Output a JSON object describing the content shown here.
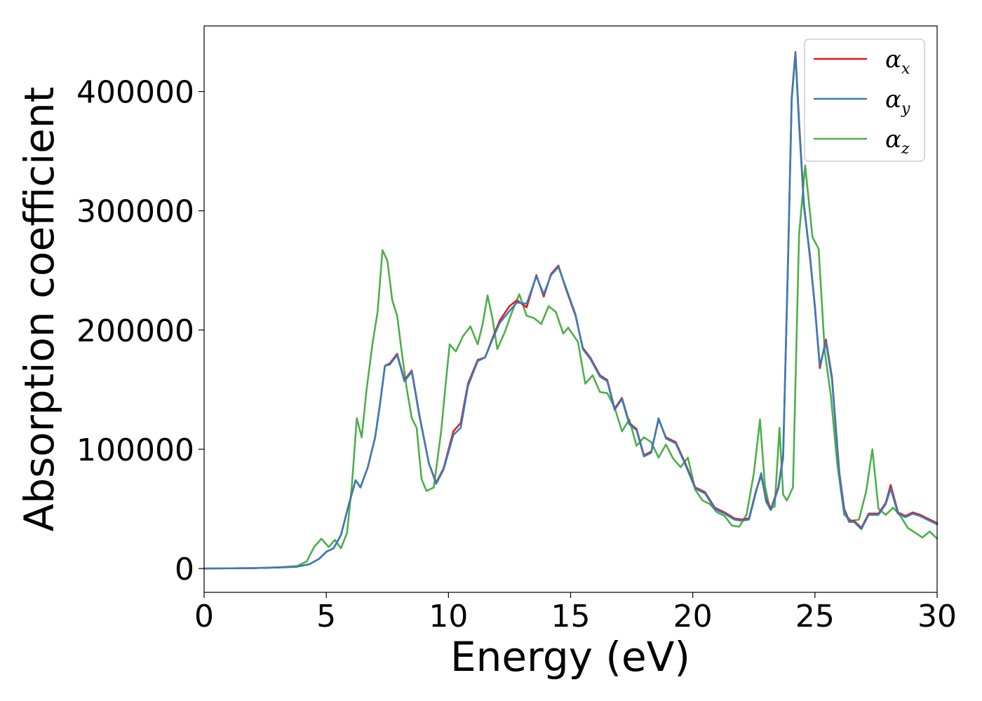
{
  "chart_data": {
    "type": "line",
    "xlabel": "Energy (eV)",
    "ylabel": "Absorption coefficient",
    "xlim": [
      0,
      30
    ],
    "ylim": [
      -20000,
      455000
    ],
    "xticks": [
      0,
      5,
      10,
      15,
      20,
      25,
      30
    ],
    "yticks": [
      0,
      100000,
      200000,
      300000,
      400000
    ],
    "grid": false,
    "legend_position": "top-right",
    "series": [
      {
        "name": "αx",
        "legend_base": "α",
        "legend_sub": "x",
        "color": "#e41a1c",
        "x": [
          0,
          2,
          3,
          3.8,
          4.3,
          4.7,
          5.0,
          5.3,
          5.6,
          5.9,
          6.2,
          6.4,
          6.7,
          7.0,
          7.2,
          7.4,
          7.6,
          7.9,
          8.2,
          8.5,
          8.8,
          9.2,
          9.5,
          9.8,
          10.2,
          10.5,
          10.8,
          11.2,
          11.5,
          11.8,
          12.1,
          12.5,
          12.8,
          13.2,
          13.6,
          13.9,
          14.2,
          14.5,
          14.8,
          15.2,
          15.5,
          15.8,
          16.2,
          16.5,
          16.8,
          17.1,
          17.4,
          17.7,
          18.0,
          18.3,
          18.6,
          18.9,
          19.3,
          19.7,
          20.1,
          20.5,
          20.9,
          21.3,
          21.7,
          22.0,
          22.3,
          22.6,
          22.8,
          23.0,
          23.2,
          23.5,
          23.7,
          23.9,
          24.05,
          24.2,
          24.35,
          24.55,
          24.8,
          25.0,
          25.2,
          25.45,
          25.7,
          26.0,
          26.2,
          26.4,
          26.6,
          26.9,
          27.2,
          27.6,
          27.9,
          28.1,
          28.4,
          28.7,
          29.0,
          29.3,
          29.6,
          30
        ],
        "y": [
          0,
          300,
          800,
          1500,
          3500,
          8000,
          14000,
          17000,
          28000,
          52000,
          74000,
          68000,
          85000,
          110000,
          138000,
          170000,
          172000,
          180000,
          158000,
          166000,
          130000,
          88000,
          72000,
          84000,
          115000,
          122000,
          155000,
          175000,
          177000,
          193000,
          208000,
          220000,
          225000,
          219000,
          246000,
          228000,
          247000,
          254000,
          235000,
          212000,
          185000,
          177000,
          162000,
          158000,
          134000,
          143000,
          122000,
          117000,
          95000,
          98000,
          125000,
          110000,
          106000,
          88000,
          68000,
          64000,
          51000,
          47000,
          42000,
          41000,
          42000,
          66000,
          78000,
          58000,
          50000,
          68000,
          95000,
          260000,
          395000,
          433000,
          375000,
          305000,
          260000,
          220000,
          168000,
          192000,
          160000,
          80000,
          50000,
          40000,
          40000,
          34000,
          46000,
          46000,
          55000,
          70000,
          47000,
          44000,
          47000,
          45000,
          42000,
          38000
        ]
      },
      {
        "name": "αy",
        "legend_base": "α",
        "legend_sub": "y",
        "color": "#377eb8",
        "x": [
          0,
          2,
          3,
          3.8,
          4.3,
          4.7,
          5.0,
          5.3,
          5.6,
          5.9,
          6.2,
          6.4,
          6.7,
          7.0,
          7.2,
          7.4,
          7.6,
          7.9,
          8.2,
          8.5,
          8.8,
          9.2,
          9.5,
          9.8,
          10.2,
          10.5,
          10.8,
          11.2,
          11.5,
          11.8,
          12.1,
          12.5,
          12.8,
          13.2,
          13.6,
          13.9,
          14.2,
          14.5,
          14.8,
          15.2,
          15.5,
          15.8,
          16.2,
          16.5,
          16.8,
          17.1,
          17.4,
          17.7,
          18.0,
          18.3,
          18.6,
          18.9,
          19.3,
          19.7,
          20.1,
          20.5,
          20.9,
          21.3,
          21.7,
          22.0,
          22.3,
          22.6,
          22.8,
          23.0,
          23.2,
          23.5,
          23.7,
          23.9,
          24.05,
          24.2,
          24.35,
          24.55,
          24.8,
          25.0,
          25.2,
          25.45,
          25.7,
          26.0,
          26.2,
          26.4,
          26.6,
          26.9,
          27.2,
          27.6,
          27.9,
          28.1,
          28.4,
          28.7,
          29.0,
          29.3,
          29.6,
          30
        ],
        "y": [
          0,
          300,
          800,
          1500,
          3500,
          8000,
          14000,
          17000,
          28000,
          52000,
          74000,
          68000,
          85000,
          110000,
          138000,
          170000,
          171000,
          179000,
          157000,
          165000,
          129000,
          88000,
          71000,
          83000,
          112000,
          118000,
          153000,
          174000,
          177000,
          192000,
          206000,
          216000,
          223000,
          222000,
          245000,
          230000,
          246000,
          253000,
          236000,
          213000,
          184000,
          176000,
          161000,
          157000,
          133000,
          142000,
          121000,
          116000,
          94000,
          97000,
          126000,
          109000,
          105000,
          87000,
          67000,
          63000,
          50000,
          46000,
          41000,
          40000,
          41000,
          65000,
          80000,
          56000,
          49000,
          67000,
          93000,
          258000,
          393000,
          432000,
          372000,
          303000,
          262000,
          218000,
          170000,
          190000,
          158000,
          78000,
          48000,
          39000,
          39000,
          33000,
          45000,
          45000,
          54000,
          67000,
          46000,
          43000,
          46000,
          44000,
          41000,
          37000
        ]
      },
      {
        "name": "αz",
        "legend_base": "α",
        "legend_sub": "z",
        "color": "#4daf4a",
        "x": [
          0,
          2,
          3,
          3.8,
          4.2,
          4.5,
          4.8,
          5.1,
          5.35,
          5.6,
          5.85,
          6.05,
          6.25,
          6.45,
          6.65,
          6.9,
          7.1,
          7.3,
          7.5,
          7.7,
          7.9,
          8.1,
          8.3,
          8.5,
          8.7,
          8.9,
          9.1,
          9.4,
          9.7,
          9.9,
          10.05,
          10.3,
          10.6,
          10.9,
          11.2,
          11.4,
          11.6,
          11.8,
          12.0,
          12.3,
          12.6,
          12.9,
          13.2,
          13.5,
          13.8,
          14.1,
          14.4,
          14.7,
          14.9,
          15.1,
          15.3,
          15.6,
          15.9,
          16.2,
          16.5,
          16.8,
          17.1,
          17.4,
          17.7,
          18.0,
          18.3,
          18.6,
          18.9,
          19.2,
          19.5,
          19.8,
          20.1,
          20.4,
          20.7,
          21.0,
          21.3,
          21.6,
          21.9,
          22.2,
          22.5,
          22.75,
          22.95,
          23.15,
          23.35,
          23.55,
          23.7,
          23.85,
          24.1,
          24.35,
          24.6,
          24.9,
          25.15,
          25.4,
          25.65,
          25.9,
          26.2,
          26.5,
          26.8,
          27.1,
          27.35,
          27.6,
          27.9,
          28.2,
          28.5,
          28.8,
          29.1,
          29.4,
          29.7,
          30
        ],
        "y": [
          0,
          300,
          900,
          2000,
          6000,
          18000,
          25000,
          18000,
          24000,
          17000,
          30000,
          70000,
          126000,
          110000,
          150000,
          190000,
          215000,
          267000,
          258000,
          225000,
          212000,
          180000,
          150000,
          126000,
          118000,
          75000,
          65000,
          68000,
          115000,
          158000,
          188000,
          182000,
          195000,
          203000,
          188000,
          205000,
          229000,
          210000,
          184000,
          198000,
          215000,
          230000,
          212000,
          210000,
          205000,
          220000,
          215000,
          197000,
          202000,
          196000,
          190000,
          155000,
          162000,
          148000,
          147000,
          135000,
          115000,
          125000,
          103000,
          110000,
          106000,
          93000,
          104000,
          92000,
          85000,
          93000,
          66000,
          57000,
          54000,
          47000,
          44000,
          36000,
          35000,
          45000,
          80000,
          125000,
          70000,
          50000,
          52000,
          118000,
          62000,
          57000,
          68000,
          280000,
          338000,
          278000,
          268000,
          182000,
          145000,
          90000,
          45000,
          40000,
          41000,
          65000,
          100000,
          50000,
          45000,
          51000,
          44000,
          34000,
          30000,
          26000,
          31000,
          25000
        ]
      }
    ]
  }
}
